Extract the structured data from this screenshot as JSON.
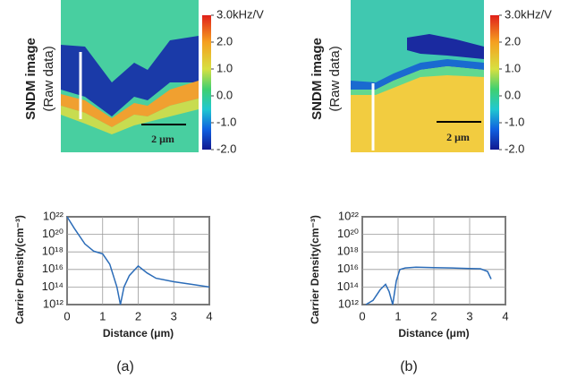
{
  "images": [
    {
      "title": "SNDM image",
      "subtitle": "(Raw data)",
      "scale_bar": "2 μm",
      "colorbar": {
        "lim": [
          -2,
          3
        ],
        "ticks": [
          {
            "value": 3,
            "label": "3.0kHz/V"
          },
          {
            "value": 2,
            "label": "2.0"
          },
          {
            "value": 1,
            "label": "1.0"
          },
          {
            "value": 0,
            "label": "0.0"
          },
          {
            "value": -1,
            "label": "-1.0"
          },
          {
            "value": -2,
            "label": "-2.0"
          }
        ]
      }
    },
    {
      "title": "SNDM image",
      "subtitle": "(Raw data)",
      "scale_bar": "2 μm",
      "colorbar": {
        "lim": [
          -2,
          3
        ],
        "ticks": [
          {
            "value": 3,
            "label": "3.0kHz/V"
          },
          {
            "value": 2,
            "label": "2.0"
          },
          {
            "value": 1,
            "label": "1.0"
          },
          {
            "value": 0,
            "label": "0.0"
          },
          {
            "value": -1,
            "label": "-1.0"
          },
          {
            "value": -2,
            "label": "-2.0"
          }
        ]
      }
    }
  ],
  "captions": [
    "(a)",
    "(b)"
  ],
  "chart_data": [
    {
      "type": "line",
      "x_label": "Distance (μm)",
      "y_label": "Carrier Density(cm⁻³)",
      "x": [
        0,
        0.2,
        0.5,
        0.75,
        1.0,
        1.2,
        1.4,
        1.5,
        1.6,
        1.75,
        2.0,
        2.25,
        2.5,
        3.0,
        3.5,
        4.0
      ],
      "values": [
        1e+22,
        5e+20,
        8e+18,
        1.2e+18,
        6e+17,
        4e+16,
        100000000000000.0,
        1000000000000.0,
        100000000000000.0,
        2000000000000000.0,
        2.5e+16,
        4000000000000000.0,
        1000000000000000.0,
        400000000000000.0,
        200000000000000.0,
        100000000000000.0
      ],
      "color": "#2b6cb8",
      "xlim": [
        0,
        4
      ],
      "xticks": [
        0,
        1,
        2,
        3,
        4
      ],
      "ylim": [
        1000000000000.0,
        1e+22
      ],
      "log": true,
      "grid": true,
      "yticks": [
        {
          "value": 1000000000000.0,
          "label": "10¹²"
        },
        {
          "value": 100000000000000.0,
          "label": "10¹⁴"
        },
        {
          "value": 1e+16,
          "label": "10¹⁶"
        },
        {
          "value": 1e+18,
          "label": "10¹⁸"
        },
        {
          "value": 1e+20,
          "label": "10²⁰"
        },
        {
          "value": 1e+22,
          "label": "10²²"
        }
      ]
    },
    {
      "type": "line",
      "x_label": "Distance (μm)",
      "y_label": "Carrier Density(cm⁻³)",
      "x": [
        0.1,
        0.3,
        0.5,
        0.65,
        0.75,
        0.85,
        0.95,
        1.05,
        1.2,
        1.5,
        2.0,
        2.5,
        3.0,
        3.3,
        3.5,
        3.6
      ],
      "values": [
        1000000000000.0,
        3000000000000.0,
        50000000000000.0,
        200000000000000.0,
        30000000000000.0,
        1000000000000.0,
        500000000000000.0,
        1e+16,
        1.5e+16,
        1.8e+16,
        1.6e+16,
        1.5e+16,
        1.3e+16,
        1.2e+16,
        6000000000000000.0,
        800000000000000.0
      ],
      "color": "#2b6cb8",
      "xlim": [
        0,
        4
      ],
      "xticks": [
        0,
        1,
        2,
        3,
        4
      ],
      "ylim": [
        1000000000000.0,
        1e+22
      ],
      "log": true,
      "grid": true,
      "yticks": [
        {
          "value": 1000000000000.0,
          "label": "10¹²"
        },
        {
          "value": 100000000000000.0,
          "label": "10¹⁴"
        },
        {
          "value": 1e+16,
          "label": "10¹⁶"
        },
        {
          "value": 1e+18,
          "label": "10¹⁸"
        },
        {
          "value": 1e+20,
          "label": "10²⁰"
        },
        {
          "value": 1e+22,
          "label": "10²²"
        }
      ]
    }
  ]
}
